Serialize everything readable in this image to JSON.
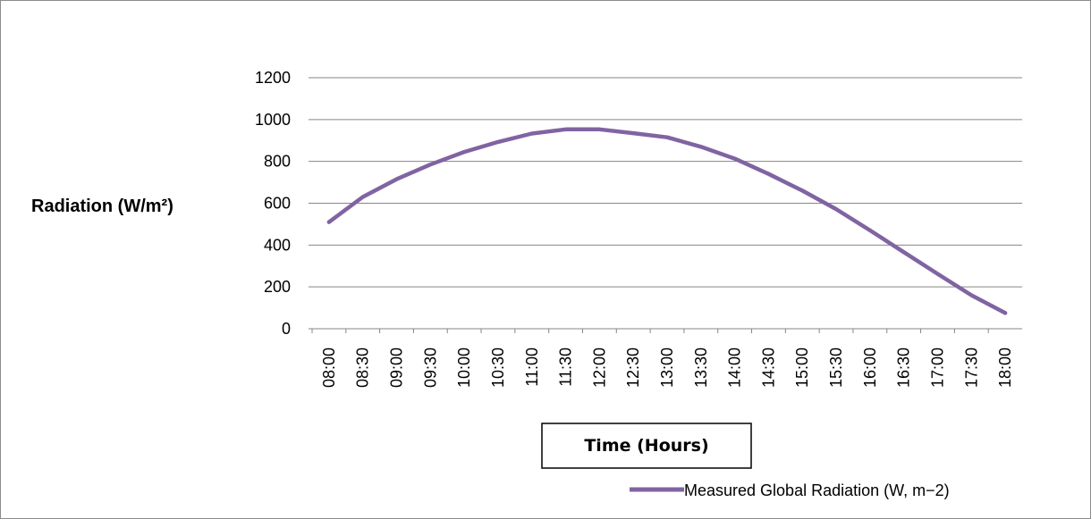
{
  "chart_data": {
    "type": "line",
    "title": "",
    "xlabel": "Time (Hours)",
    "ylabel": "Radiation (W/m²)",
    "ylim": [
      0,
      1200
    ],
    "yticks": [
      0,
      200,
      400,
      600,
      800,
      1000,
      1200
    ],
    "grid": "horizontal",
    "legend_position": "bottom-right",
    "categories": [
      "08:00",
      "08:30",
      "09:00",
      "09:30",
      "10:00",
      "10:30",
      "11:00",
      "11:30",
      "12:00",
      "12:30",
      "13:00",
      "13:30",
      "14:00",
      "14:30",
      "15:00",
      "15:30",
      "16:00",
      "16:30",
      "17:00",
      "17:30",
      "18:00"
    ],
    "series": [
      {
        "name": "Measured Global Radiation (W, m−2)",
        "color": "#8064a2",
        "values": [
          510,
          630,
          715,
          785,
          845,
          893,
          933,
          953,
          953,
          935,
          915,
          870,
          813,
          740,
          660,
          572,
          470,
          366,
          262,
          160,
          75
        ]
      }
    ]
  }
}
